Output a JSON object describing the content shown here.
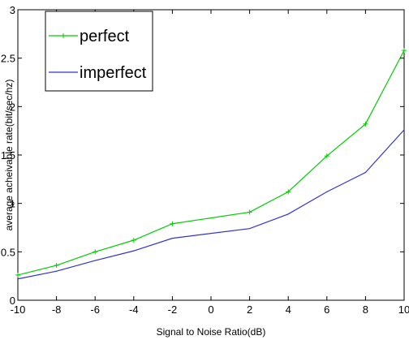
{
  "chart_data": {
    "type": "line",
    "title": "",
    "xlabel": "Signal to Noise Ratio(dB)",
    "ylabel": "average acheivable rate(bit/sec/hz)",
    "x": [
      -10,
      -8,
      -6,
      -4,
      -2,
      2,
      4,
      6,
      8,
      10
    ],
    "xlim": [
      -10,
      10
    ],
    "ylim": [
      0,
      3
    ],
    "xticks": [
      -10,
      -8,
      -6,
      -4,
      -2,
      0,
      2,
      4,
      6,
      8,
      10
    ],
    "yticks": [
      0,
      0.5,
      1,
      1.5,
      2,
      2.5,
      3
    ],
    "xtick_labels": [
      "-10",
      "-8",
      "-6",
      "-4",
      "-2",
      "0",
      "2",
      "4",
      "6",
      "8",
      "10"
    ],
    "ytick_labels": [
      "0",
      "0.5",
      "1",
      "1.5",
      "2",
      "2.5",
      "3"
    ],
    "grid": false,
    "legend_position": "top-left",
    "series": [
      {
        "name": "perfect",
        "color": "#00cc00",
        "marker": "plus",
        "values": [
          0.26,
          0.36,
          0.5,
          0.62,
          0.79,
          0.91,
          1.12,
          1.49,
          1.82,
          2.58
        ]
      },
      {
        "name": "imperfect",
        "color": "#3333cc",
        "marker": "none",
        "values": [
          0.22,
          0.3,
          0.41,
          0.51,
          0.64,
          0.74,
          0.89,
          1.12,
          1.32,
          1.76
        ]
      }
    ]
  }
}
